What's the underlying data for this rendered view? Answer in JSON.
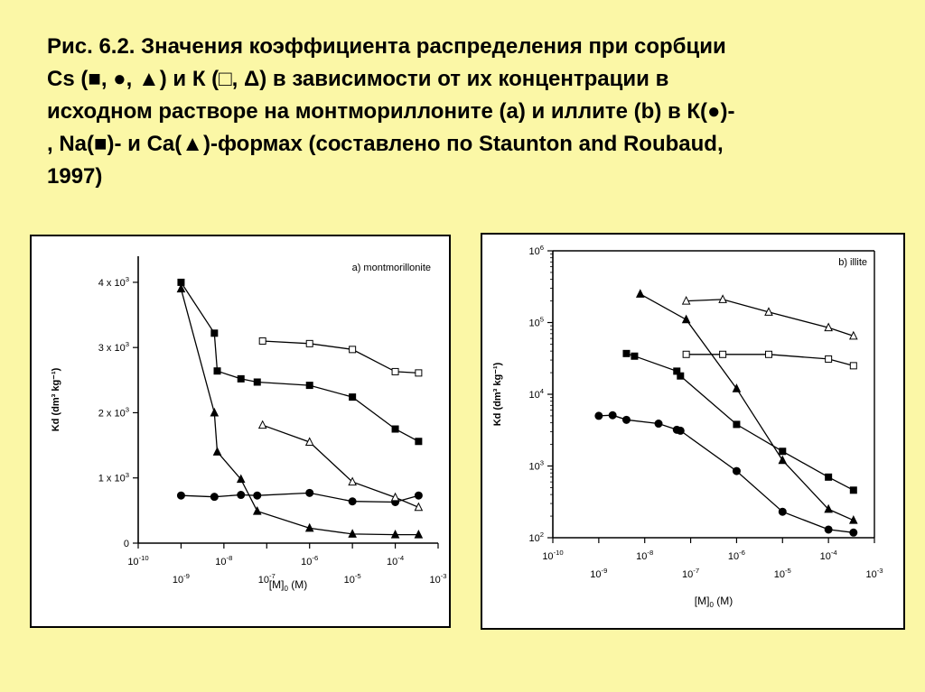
{
  "caption": {
    "lines": [
      "Рис. 6.2. Значения коэффициента распределения при сорбции",
      "Cs (■, ●,  ▲) и К (□, Δ) в зависимости  от их концентрации в",
      "исходном растворе  на монтмориллоните (а)  и иллите (b) в К(●)-",
      ", Na(■)- и Ca(▲)-формах (составлено по Staunton and Roubaud,",
      "1997)"
    ]
  },
  "chart_data": [
    {
      "type": "line",
      "panel_label": "a) montmorillonite",
      "xlabel": "[M]",
      "xlabel_sub": "0",
      "xlabel_unit": " (M)",
      "ylabel": "Kd (dm³ kg⁻¹)",
      "xscale": "log",
      "xlim": [
        1e-10,
        0.001
      ],
      "ylim": [
        0,
        4400
      ],
      "x_ticks": [
        {
          "base": "10",
          "exp": "-10",
          "x": 1e-10
        },
        {
          "base": "10",
          "exp": "-9",
          "x": 1e-09
        },
        {
          "base": "10",
          "exp": "-8",
          "x": 1e-08
        },
        {
          "base": "10",
          "exp": "-7",
          "x": 1e-07
        },
        {
          "base": "10",
          "exp": "-6",
          "x": 1e-06
        },
        {
          "base": "10",
          "exp": "-5",
          "x": 1e-05
        },
        {
          "base": "10",
          "exp": "-4",
          "x": 0.0001
        },
        {
          "base": "10",
          "exp": "-3",
          "x": 0.001
        }
      ],
      "y_ticks": [
        {
          "label": "0",
          "exp": "",
          "y": 0
        },
        {
          "label": "1 x 10",
          "exp": "3",
          "y": 1000
        },
        {
          "label": "2 x 10",
          "exp": "3",
          "y": 2000
        },
        {
          "label": "3 x 10",
          "exp": "3",
          "y": 3000
        },
        {
          "label": "4 x 10",
          "exp": "3",
          "y": 4000
        }
      ],
      "series": [
        {
          "marker": "filled-square",
          "points": [
            [
              1e-09,
              4000
            ],
            [
              6e-09,
              3220
            ],
            [
              7e-09,
              2640
            ],
            [
              2.5e-08,
              2520
            ],
            [
              6e-08,
              2470
            ],
            [
              1e-06,
              2420
            ],
            [
              1e-05,
              2240
            ],
            [
              0.0001,
              1750
            ],
            [
              0.00035,
              1560
            ]
          ]
        },
        {
          "marker": "filled-triangle",
          "points": [
            [
              1e-09,
              3900
            ],
            [
              6e-09,
              2000
            ],
            [
              7e-09,
              1400
            ],
            [
              2.5e-08,
              980
            ],
            [
              6e-08,
              490
            ],
            [
              1e-06,
              230
            ],
            [
              1e-05,
              140
            ],
            [
              0.0001,
              130
            ],
            [
              0.00035,
              130
            ]
          ]
        },
        {
          "marker": "filled-circle",
          "points": [
            [
              1e-09,
              730
            ],
            [
              6e-09,
              710
            ],
            [
              2.5e-08,
              740
            ],
            [
              6e-08,
              730
            ],
            [
              1e-06,
              770
            ],
            [
              1e-05,
              640
            ],
            [
              0.0001,
              630
            ],
            [
              0.00035,
              730
            ]
          ]
        },
        {
          "marker": "open-square",
          "points": [
            [
              8e-08,
              3100
            ],
            [
              1e-06,
              3060
            ],
            [
              1e-05,
              2970
            ],
            [
              0.0001,
              2630
            ],
            [
              0.00035,
              2610
            ]
          ]
        },
        {
          "marker": "open-triangle",
          "points": [
            [
              8e-08,
              1810
            ],
            [
              1e-06,
              1550
            ],
            [
              1e-05,
              940
            ],
            [
              0.0001,
              700
            ],
            [
              0.00035,
              550
            ]
          ]
        }
      ]
    },
    {
      "type": "line",
      "panel_label": "b) illite",
      "xlabel": "[M]",
      "xlabel_sub": "0",
      "xlabel_unit": " (M)",
      "ylabel": "Kd (dm³ kg⁻¹)",
      "xscale": "log",
      "yscale": "log",
      "xlim": [
        1e-10,
        0.001
      ],
      "ylim": [
        100,
        1000000
      ],
      "x_ticks": [
        {
          "base": "10",
          "exp": "-10",
          "x": 1e-10
        },
        {
          "base": "10",
          "exp": "-9",
          "x": 1e-09
        },
        {
          "base": "10",
          "exp": "-8",
          "x": 1e-08
        },
        {
          "base": "10",
          "exp": "-7",
          "x": 1e-07
        },
        {
          "base": "10",
          "exp": "-6",
          "x": 1e-06
        },
        {
          "base": "10",
          "exp": "-5",
          "x": 1e-05
        },
        {
          "base": "10",
          "exp": "-4",
          "x": 0.0001
        },
        {
          "base": "10",
          "exp": "-3",
          "x": 0.001
        }
      ],
      "y_ticks": [
        {
          "label": "10",
          "exp": "2",
          "y": 100
        },
        {
          "label": "10",
          "exp": "3",
          "y": 1000
        },
        {
          "label": "10",
          "exp": "4",
          "y": 10000
        },
        {
          "label": "10",
          "exp": "5",
          "y": 100000
        },
        {
          "label": "10",
          "exp": "6",
          "y": 1000000
        }
      ],
      "series": [
        {
          "marker": "filled-triangle",
          "points": [
            [
              8e-09,
              250000
            ],
            [
              8e-08,
              110000
            ],
            [
              1e-06,
              12000
            ],
            [
              1e-05,
              1200
            ],
            [
              0.0001,
              250
            ],
            [
              0.00035,
              175
            ]
          ]
        },
        {
          "marker": "filled-square",
          "points": [
            [
              4e-09,
              37000
            ],
            [
              6e-09,
              34000
            ],
            [
              5e-08,
              21000
            ],
            [
              6e-08,
              18000
            ],
            [
              1e-06,
              3800
            ],
            [
              1e-05,
              1600
            ],
            [
              0.0001,
              700
            ],
            [
              0.00035,
              460
            ]
          ]
        },
        {
          "marker": "filled-circle",
          "points": [
            [
              1e-09,
              5000
            ],
            [
              2e-09,
              5100
            ],
            [
              4e-09,
              4400
            ],
            [
              2e-08,
              3900
            ],
            [
              5e-08,
              3200
            ],
            [
              6e-08,
              3100
            ],
            [
              1e-06,
              850
            ],
            [
              1e-05,
              230
            ],
            [
              0.0001,
              130
            ],
            [
              0.00035,
              118
            ]
          ]
        },
        {
          "marker": "open-triangle",
          "points": [
            [
              8e-08,
              200000
            ],
            [
              5e-07,
              210000
            ],
            [
              5e-06,
              140000
            ],
            [
              0.0001,
              85000
            ],
            [
              0.00035,
              65000
            ]
          ]
        },
        {
          "marker": "open-square",
          "points": [
            [
              8e-08,
              36000
            ],
            [
              5e-07,
              36000
            ],
            [
              5e-06,
              36000
            ],
            [
              0.0001,
              31000
            ],
            [
              0.00035,
              25000
            ]
          ]
        }
      ]
    }
  ]
}
